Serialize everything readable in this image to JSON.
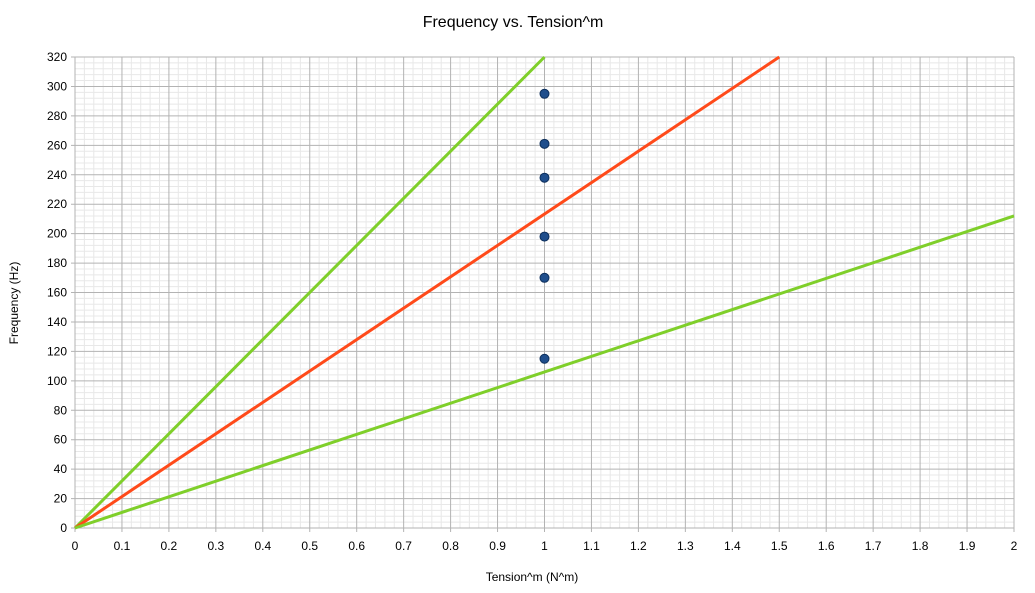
{
  "chart_data": {
    "type": "scatter",
    "title": "Frequency vs. Tension^m",
    "xlabel": "Tension^m (N^m)",
    "ylabel": "Frequency (Hz)",
    "xlim": [
      0,
      2
    ],
    "ylim": [
      0,
      320
    ],
    "x_ticks": [
      "0",
      "0.1",
      "0.2",
      "0.3",
      "0.4",
      "0.5",
      "0.6",
      "0.7",
      "0.8",
      "0.9",
      "1",
      "1.1",
      "1.2",
      "1.3",
      "1.4",
      "1.5",
      "1.6",
      "1.7",
      "1.8",
      "1.9",
      "2"
    ],
    "y_ticks": [
      "0",
      "20",
      "40",
      "60",
      "80",
      "100",
      "120",
      "140",
      "160",
      "180",
      "200",
      "220",
      "240",
      "260",
      "280",
      "300",
      "320"
    ],
    "grid": true,
    "legend": "none",
    "series": [
      {
        "kind": "points",
        "color": "#1f4e8c",
        "x": [
          1,
          1,
          1,
          1,
          1,
          1
        ],
        "y": [
          295,
          261,
          238,
          198,
          170,
          115
        ]
      },
      {
        "kind": "line",
        "color": "#7fcf2a",
        "x": [
          0,
          1
        ],
        "y": [
          0,
          320
        ]
      },
      {
        "kind": "line",
        "color": "#ff4a1a",
        "x": [
          0,
          1.5
        ],
        "y": [
          0,
          320
        ]
      },
      {
        "kind": "line",
        "color": "#7fcf2a",
        "x": [
          0,
          2
        ],
        "y": [
          0,
          212
        ]
      }
    ]
  }
}
